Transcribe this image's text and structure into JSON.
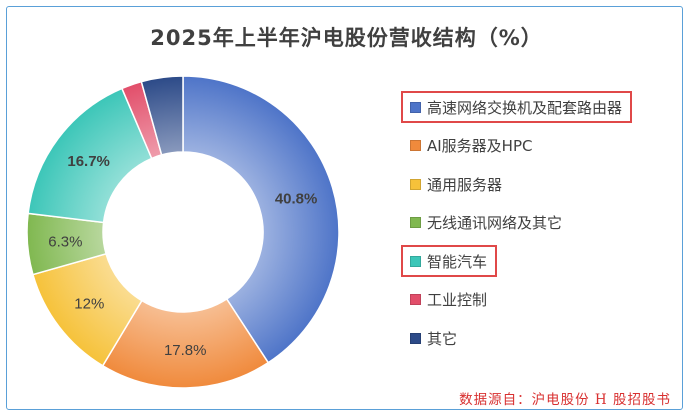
{
  "chart_data": {
    "type": "pie",
    "title": "2025年上半年沪电股份营收结构（%）",
    "categories": [
      "高速网络交换机及配套路由器",
      "AI服务器及HPC",
      "通用服务器",
      "无线通讯网络及其它",
      "智能汽车",
      "工业控制",
      "其它"
    ],
    "values": [
      40.8,
      17.8,
      12,
      6.3,
      16.7,
      2.1,
      4.3
    ],
    "data_labels": [
      "40.8%",
      "17.8%",
      "12%",
      "6.3%",
      "16.7%",
      "",
      ""
    ],
    "colors": [
      "#4e74c8",
      "#f08a3c",
      "#f6c23a",
      "#80b850",
      "#3cc6b8",
      "#e24e6a",
      "#2c4a88"
    ],
    "highlighted": [
      "高速网络交换机及配套路由器",
      "智能汽车"
    ],
    "legend_position": "right",
    "hole": "donut"
  },
  "source": "数据源自：沪电股份 H 股招股书"
}
